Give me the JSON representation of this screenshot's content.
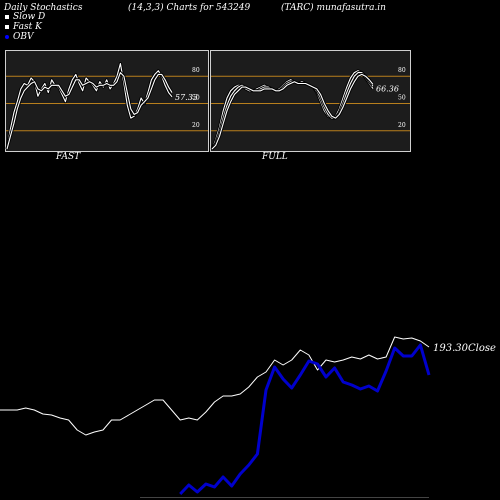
{
  "header": {
    "left": "Daily Stochastics",
    "center": "(14,3,3) Charts for 543249",
    "right": "(TARC) munafasutra.in"
  },
  "legend": [
    {
      "label": "Slow  D",
      "color": "#ffffff"
    },
    {
      "label": "Fast K",
      "color": "#ffffff"
    },
    {
      "label": "OBV",
      "color": "#0000ff"
    }
  ],
  "colors": {
    "background": "#000000",
    "panel": "#1c1c1c",
    "band": "#b87f1d",
    "line": "#ffffff",
    "obv": "#0000cc"
  },
  "chart_data": [
    {
      "type": "line",
      "name": "fast-stochastic",
      "caption": "FAST",
      "ylim": [
        0,
        100
      ],
      "levels": [
        20,
        50,
        80
      ],
      "level_labels": [
        "20",
        "50",
        "80"
      ],
      "last_value_label": "57.33",
      "series": [
        {
          "values": [
            0,
            22,
            40,
            52,
            66,
            72,
            70,
            78,
            74,
            58,
            66,
            72,
            62,
            76,
            70,
            68,
            60,
            52,
            66,
            76,
            82,
            72,
            64,
            78,
            74,
            70,
            64,
            74,
            68,
            76,
            66,
            72,
            80,
            94,
            72,
            48,
            34,
            36,
            44,
            56,
            50,
            62,
            76,
            82,
            86,
            80,
            70,
            62,
            57.33
          ]
        },
        {
          "values": [
            0,
            14,
            28,
            44,
            56,
            64,
            68,
            72,
            74,
            66,
            64,
            68,
            66,
            70,
            70,
            70,
            64,
            58,
            60,
            68,
            76,
            76,
            70,
            72,
            74,
            72,
            68,
            70,
            70,
            72,
            70,
            70,
            74,
            84,
            80,
            62,
            44,
            38,
            40,
            48,
            52,
            56,
            66,
            76,
            82,
            82,
            76,
            68,
            62
          ]
        }
      ]
    },
    {
      "type": "line",
      "name": "full-stochastic",
      "caption": "FULL",
      "ylim": [
        0,
        100
      ],
      "levels": [
        20,
        50,
        80
      ],
      "level_labels": [
        "20",
        "50",
        "80"
      ],
      "last_value_label": "66.36",
      "series": [
        {
          "values": [
            0,
            10,
            24,
            42,
            56,
            64,
            68,
            70,
            70,
            66,
            64,
            64,
            66,
            68,
            70,
            68,
            66,
            64,
            66,
            70,
            74,
            76,
            74,
            72,
            74,
            72,
            70,
            68,
            62,
            52,
            42,
            36,
            34,
            36,
            44,
            56,
            68,
            78,
            84,
            86,
            84,
            78,
            72,
            66.36
          ]
        },
        {
          "values": [
            0,
            6,
            18,
            34,
            48,
            58,
            64,
            68,
            70,
            68,
            66,
            64,
            64,
            66,
            68,
            68,
            66,
            64,
            64,
            68,
            72,
            74,
            74,
            72,
            72,
            72,
            70,
            68,
            64,
            56,
            46,
            38,
            34,
            34,
            40,
            50,
            62,
            72,
            80,
            84,
            84,
            80,
            74,
            69
          ]
        },
        {
          "values": [
            0,
            4,
            14,
            28,
            42,
            52,
            60,
            64,
            68,
            68,
            66,
            64,
            64,
            64,
            66,
            66,
            66,
            64,
            64,
            66,
            70,
            72,
            74,
            72,
            72,
            72,
            70,
            68,
            66,
            60,
            50,
            42,
            36,
            34,
            38,
            46,
            56,
            66,
            74,
            80,
            82,
            80,
            76,
            71
          ]
        }
      ]
    },
    {
      "type": "line",
      "name": "price-obv",
      "last_close_label": "193.30",
      "last_close_suffix": "Close",
      "series": [
        {
          "name": "Close",
          "values": [
            410,
            410,
            410,
            408,
            410,
            414,
            415,
            418,
            420,
            430,
            435,
            432,
            430,
            420,
            420,
            415,
            410,
            405,
            400,
            400,
            410,
            420,
            418,
            420,
            412,
            402,
            396,
            396,
            394,
            387,
            377,
            372,
            360,
            365,
            360,
            350,
            355,
            370,
            360,
            362,
            360,
            357,
            359,
            355,
            359,
            357,
            337,
            339,
            338,
            341,
            347
          ]
        },
        {
          "name": "OBV",
          "values": [
            null,
            null,
            null,
            null,
            null,
            null,
            null,
            null,
            null,
            null,
            null,
            null,
            null,
            null,
            null,
            null,
            null,
            null,
            null,
            null,
            null,
            494,
            485,
            492,
            484,
            487,
            477,
            486,
            474,
            465,
            454,
            390,
            367,
            379,
            388,
            375,
            361,
            364,
            377,
            368,
            382,
            385,
            389,
            386,
            391,
            371,
            348,
            356,
            356,
            345,
            375
          ]
        }
      ]
    }
  ]
}
